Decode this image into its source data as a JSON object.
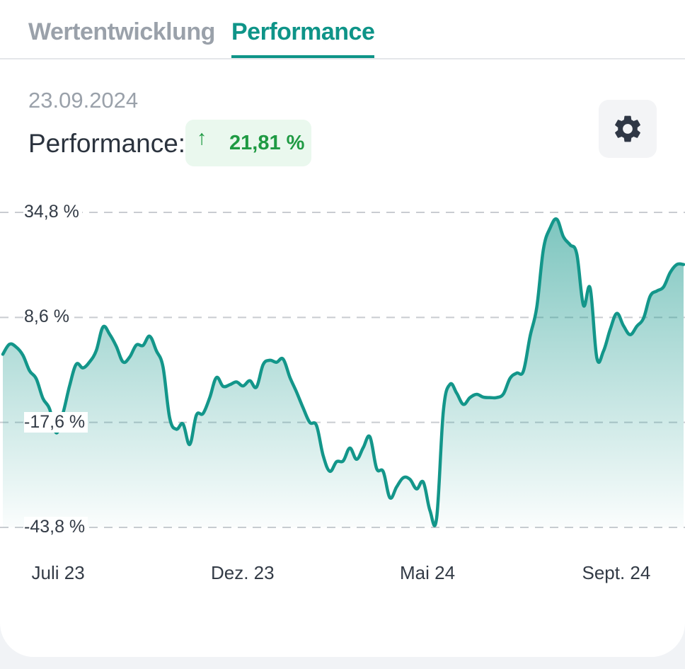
{
  "tabs": [
    {
      "label": "Wertentwicklung",
      "active": false
    },
    {
      "label": "Performance",
      "active": true
    }
  ],
  "header": {
    "date": "23.09.2024",
    "performance_label": "Performance:",
    "performance_arrow": "↑",
    "performance_value": "21,81 %",
    "settings_icon": "gear-icon"
  },
  "colors": {
    "accent": "#0e9488",
    "line": "#13968a",
    "positive": "#1f9a43",
    "positive_bg": "#eaf8ee"
  },
  "chart_data": {
    "type": "area",
    "title": "",
    "xlabel": "",
    "ylabel": "",
    "y_ticks": [
      34.8,
      8.6,
      -17.6,
      -43.8
    ],
    "y_tick_labels": [
      "34,8 %",
      "8,6 %",
      "-17,6 %",
      "-43,8 %"
    ],
    "ylim": [
      -43.8,
      34.8
    ],
    "x_tick_labels": [
      "Juli 23",
      "Dez. 23",
      "Mai 24",
      "Sept. 24"
    ],
    "grid": "horizontal dashed",
    "legend": "none",
    "series": [
      {
        "values": [
          -0.6,
          1.9,
          1.2,
          -0.8,
          -4.7,
          -6.7,
          -11.6,
          -14.2,
          -20.2,
          -15.4,
          -8.5,
          -3.1,
          -4.0,
          -2.5,
          0.3,
          6.2,
          4.4,
          1.4,
          -2.5,
          -1.3,
          1.7,
          1.6,
          3.9,
          0.3,
          -3.8,
          -16.5,
          -19.3,
          -18.0,
          -23.1,
          -15.8,
          -15.4,
          -11.4,
          -6.4,
          -8.6,
          -8.2,
          -7.5,
          -8.5,
          -7.2,
          -8.8,
          -3.2,
          -2.1,
          -2.6,
          -1.8,
          -6.3,
          -10.0,
          -14.0,
          -17.6,
          -18.4,
          -25.9,
          -29.8,
          -27.4,
          -27.2,
          -24.0,
          -26.8,
          -23.9,
          -21.2,
          -29.1,
          -29.9,
          -36.4,
          -33.7,
          -31.4,
          -31.8,
          -34.2,
          -32.5,
          -39.6,
          -41.5,
          -14.8,
          -8.1,
          -10.3,
          -13.1,
          -11.4,
          -10.6,
          -11.3,
          -11.4,
          -11.4,
          -10.5,
          -6.6,
          -5.3,
          -4.8,
          3.9,
          11.1,
          25.6,
          30.9,
          33.1,
          28.7,
          26.7,
          24.4,
          11.6,
          15.9,
          -1.5,
          0.2,
          5.6,
          9.6,
          6.5,
          4.3,
          6.4,
          8.4,
          13.9,
          15.2,
          16.2,
          19.8,
          21.8,
          21.8
        ]
      }
    ]
  }
}
